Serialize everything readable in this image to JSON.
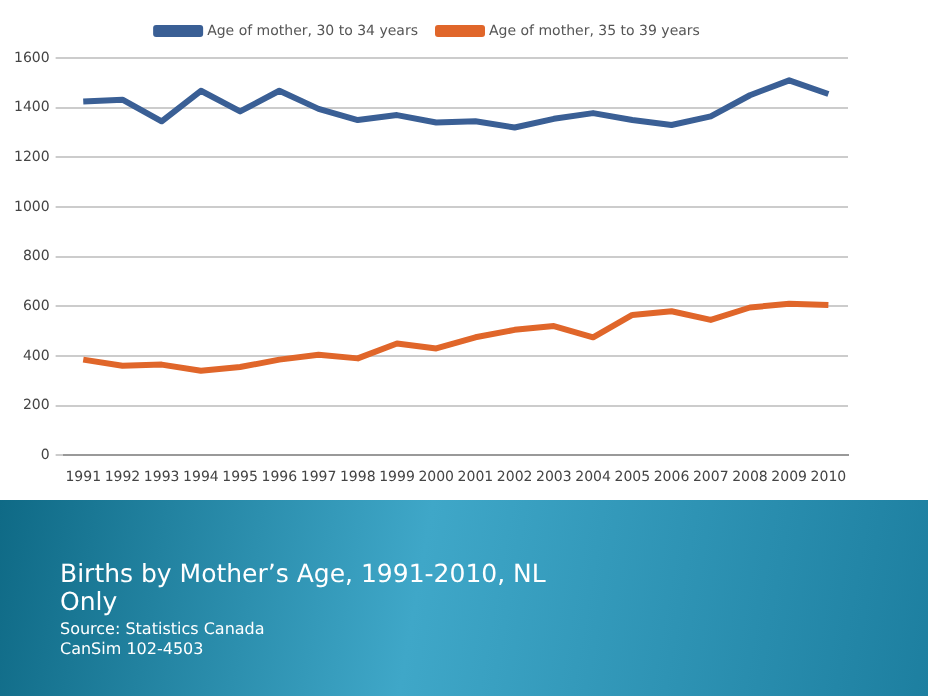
{
  "chart_data": {
    "type": "line",
    "title": "Births by Mother’s Age, 1991-2010, NL Only",
    "annotations": [
      "Source: Statistics Canada",
      "CanSim 102-4503"
    ],
    "categories": [
      "1991",
      "1992",
      "1993",
      "1994",
      "1995",
      "1996",
      "1997",
      "1998",
      "1999",
      "2000",
      "2001",
      "2002",
      "2003",
      "2004",
      "2005",
      "2006",
      "2007",
      "2008",
      "2009",
      "2010"
    ],
    "series": [
      {
        "name": "Age of mother, 30 to 34 years",
        "color": "#3a5f95",
        "values": [
          1425,
          1432,
          1345,
          1468,
          1385,
          1468,
          1395,
          1350,
          1370,
          1340,
          1345,
          1320,
          1355,
          1378,
          1350,
          1330,
          1365,
          1450,
          1510,
          1455
        ]
      },
      {
        "name": "Age of mother, 35 to 39 years",
        "color": "#e0662a",
        "values": [
          385,
          360,
          365,
          340,
          355,
          385,
          405,
          390,
          450,
          430,
          475,
          505,
          520,
          475,
          565,
          580,
          545,
          595,
          610,
          605
        ]
      }
    ],
    "ylim": [
      0,
      1600
    ],
    "yticks": [
      0,
      200,
      400,
      600,
      800,
      1000,
      1200,
      1400,
      1600
    ],
    "grid": "y",
    "legend": "top",
    "marker": "none",
    "line_style": "solid"
  }
}
